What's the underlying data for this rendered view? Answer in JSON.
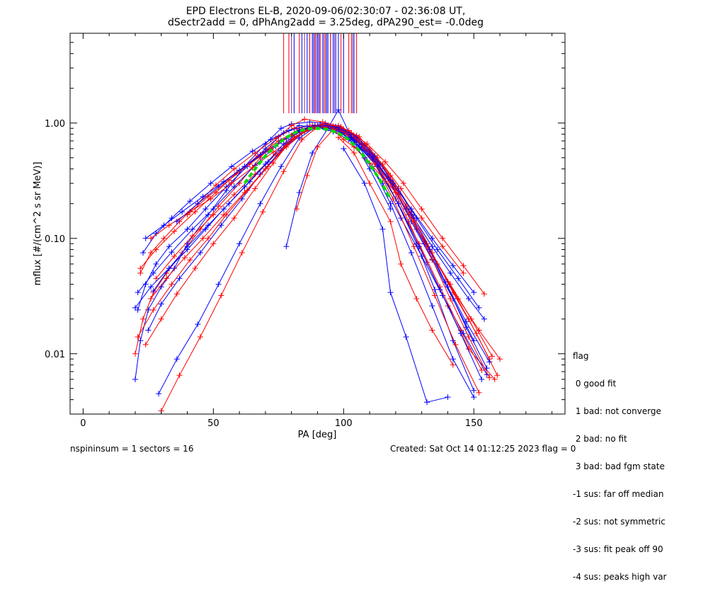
{
  "title": {
    "line1": "EPD Electrons EL-B, 2020-09-06/02:30:07 - 02:36:08 UT,",
    "line2": "dSectr2add = 0, dPhAng2add = 3.25deg, dPA290_est=  -0.0deg"
  },
  "chart_data": {
    "type": "line",
    "xlabel": "PA [deg]",
    "ylabel": "mflux [#/(cm^2 s sr MeV)]",
    "xlim": [
      -5,
      185
    ],
    "ylim": [
      0.003,
      6.0
    ],
    "yscale": "log",
    "x_ticks": [
      0,
      50,
      100,
      150
    ],
    "x_tick_labels": [
      "0",
      "50",
      "100",
      "150"
    ],
    "y_ticks": [
      0.01,
      0.1,
      1.0
    ],
    "y_tick_labels": [
      "0.01",
      "0.10",
      "1.00"
    ],
    "grid": false,
    "series": [
      {
        "color": "#0000ff",
        "x": [
          20,
          22,
          25,
          30,
          35,
          40,
          48,
          55,
          62,
          70,
          76,
          80,
          87,
          93,
          98,
          104,
          112,
          120,
          128,
          135,
          142,
          150
        ],
        "y": [
          0.006,
          0.013,
          0.024,
          0.038,
          0.055,
          0.09,
          0.16,
          0.26,
          0.42,
          0.66,
          0.9,
          0.98,
          1.02,
          0.99,
          0.92,
          0.7,
          0.44,
          0.22,
          0.09,
          0.036,
          0.013,
          0.0048
        ]
      },
      {
        "color": "#ff0000",
        "x": [
          20,
          23,
          27,
          32,
          38,
          45,
          52,
          60,
          68,
          75,
          80,
          85,
          92,
          98,
          105,
          112,
          118,
          125,
          132,
          140,
          148,
          158
        ],
        "y": [
          0.01,
          0.02,
          0.034,
          0.05,
          0.075,
          0.12,
          0.19,
          0.3,
          0.5,
          0.76,
          0.95,
          1.08,
          1.02,
          0.94,
          0.78,
          0.5,
          0.3,
          0.14,
          0.062,
          0.026,
          0.011,
          0.006
        ]
      },
      {
        "color": "#0000ff",
        "x": [
          21,
          24,
          28,
          33,
          40,
          47,
          55,
          63,
          70,
          77,
          83,
          90,
          96,
          102,
          108,
          115,
          122,
          130,
          138,
          146,
          155
        ],
        "y": [
          0.024,
          0.04,
          0.06,
          0.085,
          0.12,
          0.18,
          0.28,
          0.42,
          0.6,
          0.82,
          0.95,
          0.92,
          0.84,
          0.72,
          0.5,
          0.3,
          0.15,
          0.07,
          0.032,
          0.015,
          0.0066
        ]
      },
      {
        "color": "#ff0000",
        "x": [
          22,
          26,
          31,
          37,
          44,
          51,
          58,
          66,
          74,
          81,
          88,
          95,
          101,
          107,
          114,
          121,
          128,
          136,
          144,
          152,
          160
        ],
        "y": [
          0.05,
          0.075,
          0.1,
          0.14,
          0.2,
          0.29,
          0.4,
          0.55,
          0.74,
          0.9,
          0.96,
          0.9,
          0.8,
          0.6,
          0.4,
          0.24,
          0.12,
          0.06,
          0.03,
          0.016,
          0.009
        ]
      },
      {
        "color": "#0000ff",
        "x": [
          23,
          28,
          34,
          41,
          49,
          57,
          65,
          72,
          79,
          86,
          93,
          99,
          106,
          113,
          120,
          127,
          134,
          141,
          148,
          154
        ],
        "y": [
          0.075,
          0.11,
          0.15,
          0.21,
          0.3,
          0.42,
          0.57,
          0.72,
          0.86,
          0.94,
          0.9,
          0.82,
          0.62,
          0.44,
          0.27,
          0.15,
          0.085,
          0.05,
          0.03,
          0.02
        ]
      },
      {
        "color": "#ff0000",
        "x": [
          24,
          30,
          36,
          43,
          50,
          58,
          66,
          73,
          80,
          87,
          94,
          100,
          107,
          114,
          121,
          129,
          137,
          145,
          153
        ],
        "y": [
          0.012,
          0.02,
          0.033,
          0.055,
          0.09,
          0.15,
          0.27,
          0.45,
          0.72,
          0.92,
          0.96,
          0.88,
          0.66,
          0.4,
          0.2,
          0.09,
          0.038,
          0.016,
          0.0072
        ]
      },
      {
        "color": "#0000ff",
        "x": [
          25,
          30,
          37,
          45,
          53,
          61,
          68,
          76,
          84,
          92,
          99,
          106,
          113,
          121,
          129,
          137,
          145,
          153
        ],
        "y": [
          0.016,
          0.027,
          0.045,
          0.075,
          0.13,
          0.22,
          0.36,
          0.58,
          0.82,
          0.95,
          0.9,
          0.68,
          0.42,
          0.2,
          0.085,
          0.036,
          0.015,
          0.006
        ]
      },
      {
        "color": "#ff0000",
        "x": [
          26,
          32,
          39,
          46,
          54,
          62,
          70,
          78,
          85,
          91,
          97,
          103,
          110,
          117,
          124,
          132,
          140,
          148,
          156
        ],
        "y": [
          0.03,
          0.045,
          0.068,
          0.1,
          0.16,
          0.25,
          0.4,
          0.62,
          0.84,
          0.95,
          0.93,
          0.8,
          0.58,
          0.36,
          0.19,
          0.09,
          0.042,
          0.02,
          0.009
        ]
      },
      {
        "color": "#0000ff",
        "x": [
          27,
          33,
          40,
          48,
          56,
          64,
          71,
          78,
          85,
          92,
          98,
          105,
          112,
          119,
          126,
          134,
          142,
          150
        ],
        "y": [
          0.035,
          0.055,
          0.085,
          0.13,
          0.2,
          0.31,
          0.46,
          0.66,
          0.86,
          0.93,
          0.9,
          0.72,
          0.48,
          0.28,
          0.14,
          0.065,
          0.03,
          0.013
        ]
      },
      {
        "color": "#ff0000",
        "x": [
          28,
          35,
          42,
          50,
          58,
          66,
          74,
          82,
          89,
          96,
          103,
          110,
          118,
          126,
          134,
          142,
          151,
          159
        ],
        "y": [
          0.045,
          0.07,
          0.105,
          0.16,
          0.24,
          0.36,
          0.54,
          0.77,
          0.92,
          0.94,
          0.82,
          0.6,
          0.35,
          0.17,
          0.075,
          0.034,
          0.015,
          0.0065
        ]
      },
      {
        "color": "#0000ff",
        "x": [
          29,
          36,
          44,
          52,
          60,
          68,
          76,
          83,
          90,
          97,
          104,
          111,
          118,
          126,
          134,
          142,
          150
        ],
        "y": [
          0.0045,
          0.009,
          0.018,
          0.04,
          0.09,
          0.2,
          0.42,
          0.74,
          0.95,
          0.93,
          0.72,
          0.42,
          0.2,
          0.075,
          0.026,
          0.009,
          0.0042
        ]
      },
      {
        "color": "#ff0000",
        "x": [
          30,
          37,
          45,
          53,
          61,
          69,
          77,
          84,
          91,
          98,
          105,
          112,
          119,
          127,
          135,
          143,
          152
        ],
        "y": [
          0.0032,
          0.0065,
          0.014,
          0.032,
          0.075,
          0.17,
          0.38,
          0.72,
          0.96,
          0.95,
          0.74,
          0.44,
          0.22,
          0.085,
          0.032,
          0.012,
          0.0046
        ]
      },
      {
        "color": "#0000ff",
        "x": [
          21,
          27,
          34,
          42,
          50,
          58,
          66,
          74,
          82,
          89,
          96,
          103,
          110,
          117,
          124,
          131,
          139,
          147,
          156
        ],
        "y": [
          0.034,
          0.05,
          0.076,
          0.12,
          0.18,
          0.28,
          0.43,
          0.63,
          0.85,
          0.96,
          0.91,
          0.76,
          0.54,
          0.33,
          0.18,
          0.09,
          0.042,
          0.019,
          0.0085
        ]
      },
      {
        "color": "#ff0000",
        "x": [
          22,
          28,
          35,
          43,
          51,
          59,
          67,
          75,
          83,
          90,
          97,
          104,
          111,
          118,
          125,
          133,
          141,
          149,
          157
        ],
        "y": [
          0.055,
          0.08,
          0.115,
          0.17,
          0.25,
          0.37,
          0.52,
          0.7,
          0.88,
          0.96,
          0.9,
          0.74,
          0.52,
          0.31,
          0.16,
          0.08,
          0.04,
          0.02,
          0.0095
        ]
      },
      {
        "color": "#0000ff",
        "x": [
          24,
          31,
          38,
          46,
          54,
          62,
          70,
          78,
          86,
          93,
          100,
          107,
          114,
          121,
          128,
          136,
          144,
          152
        ],
        "y": [
          0.1,
          0.13,
          0.17,
          0.23,
          0.31,
          0.42,
          0.56,
          0.73,
          0.89,
          0.94,
          0.86,
          0.66,
          0.44,
          0.27,
          0.15,
          0.08,
          0.045,
          0.025
        ]
      },
      {
        "color": "#ff0000",
        "x": [
          26,
          33,
          41,
          49,
          57,
          65,
          73,
          81,
          88,
          95,
          102,
          109,
          116,
          123,
          130,
          138,
          146,
          154
        ],
        "y": [
          0.1,
          0.13,
          0.17,
          0.22,
          0.3,
          0.41,
          0.56,
          0.75,
          0.9,
          0.94,
          0.86,
          0.66,
          0.46,
          0.3,
          0.18,
          0.1,
          0.058,
          0.033
        ]
      },
      {
        "color": "#0000ff",
        "x": [
          36,
          44,
          52,
          60,
          68,
          76,
          83,
          90,
          97,
          104,
          111,
          118,
          126,
          134,
          142,
          150
        ],
        "y": [
          0.14,
          0.2,
          0.28,
          0.39,
          0.53,
          0.7,
          0.86,
          0.93,
          0.88,
          0.7,
          0.5,
          0.32,
          0.18,
          0.1,
          0.058,
          0.034
        ]
      },
      {
        "color": "#ff0000",
        "x": [
          40,
          48,
          56,
          64,
          72,
          80,
          87,
          94,
          101,
          108,
          115,
          122,
          130,
          138,
          146
        ],
        "y": [
          0.16,
          0.23,
          0.32,
          0.44,
          0.6,
          0.78,
          0.9,
          0.92,
          0.84,
          0.64,
          0.44,
          0.27,
          0.15,
          0.085,
          0.05
        ]
      },
      {
        "color": "#0000ff",
        "x": [
          78,
          83,
          88,
          94,
          98,
          103,
          110,
          118
        ],
        "y": [
          0.085,
          0.25,
          0.55,
          0.9,
          1.3,
          0.75,
          0.4,
          0.18
        ]
      },
      {
        "color": "#ff0000",
        "x": [
          82,
          86,
          90,
          96,
          100,
          104,
          110,
          120
        ],
        "y": [
          0.18,
          0.35,
          0.62,
          0.88,
          0.72,
          0.62,
          0.45,
          0.25
        ]
      },
      {
        "color": "#0000ff",
        "x": [
          100,
          108,
          115,
          118,
          124,
          132,
          140
        ],
        "y": [
          0.6,
          0.3,
          0.12,
          0.034,
          0.014,
          0.0038,
          0.0042
        ]
      },
      {
        "color": "#ff0000",
        "x": [
          98,
          104,
          110,
          118,
          122,
          128,
          134,
          142
        ],
        "y": [
          0.75,
          0.55,
          0.3,
          0.14,
          0.06,
          0.03,
          0.016,
          0.008
        ]
      },
      {
        "color": "#0000ff",
        "x": [
          20,
          26,
          33,
          40,
          47,
          54,
          62,
          70,
          77,
          84,
          91,
          98,
          105,
          112,
          119,
          126,
          133,
          140,
          147,
          155
        ],
        "y": [
          0.025,
          0.038,
          0.055,
          0.08,
          0.12,
          0.18,
          0.28,
          0.44,
          0.66,
          0.88,
          0.97,
          0.92,
          0.76,
          0.52,
          0.3,
          0.16,
          0.08,
          0.038,
          0.017,
          0.0075
        ]
      },
      {
        "color": "#ff0000",
        "x": [
          21,
          27,
          34,
          41,
          48,
          55,
          63,
          71,
          78,
          85,
          92,
          99,
          106,
          113,
          120,
          127,
          134,
          141,
          148,
          156
        ],
        "y": [
          0.014,
          0.024,
          0.04,
          0.065,
          0.1,
          0.16,
          0.26,
          0.42,
          0.64,
          0.86,
          0.98,
          0.93,
          0.76,
          0.5,
          0.28,
          0.14,
          0.066,
          0.03,
          0.014,
          0.0062
        ]
      }
    ],
    "fit_curve": {
      "color": "#00dd00",
      "x": [
        62,
        66,
        70,
        74,
        78,
        82,
        86,
        90,
        94,
        98,
        102,
        106,
        110,
        114,
        118
      ],
      "y": [
        0.3,
        0.4,
        0.52,
        0.64,
        0.75,
        0.84,
        0.89,
        0.9,
        0.88,
        0.82,
        0.72,
        0.58,
        0.44,
        0.32,
        0.22
      ]
    },
    "spikes": {
      "blue": [
        79,
        81,
        84,
        86,
        87,
        88,
        88.5,
        89,
        90,
        90.5,
        91,
        92,
        93,
        93.5,
        94,
        95,
        96,
        97,
        98,
        100,
        104
      ],
      "red": [
        77,
        79,
        83,
        87,
        89,
        91,
        93,
        95,
        99,
        102,
        103,
        105
      ],
      "purple": [
        80,
        85,
        89.5,
        92.5,
        96.5,
        103.5
      ]
    }
  },
  "legend": {
    "title": "flag",
    "items": [
      " 0 good fit",
      " 1 bad: not converge",
      " 2 bad: no fit",
      " 3 bad: bad fgm state",
      "-1 sus: far off median",
      "-2 sus: not symmetric",
      "-3 sus: fit peak off 90",
      "-4 sus: peaks high var"
    ]
  },
  "footer": {
    "left": "nspininsum =  1  sectors = 16",
    "right": "Created: Sat Oct 14 01:12:25 2023   flag = 0"
  }
}
